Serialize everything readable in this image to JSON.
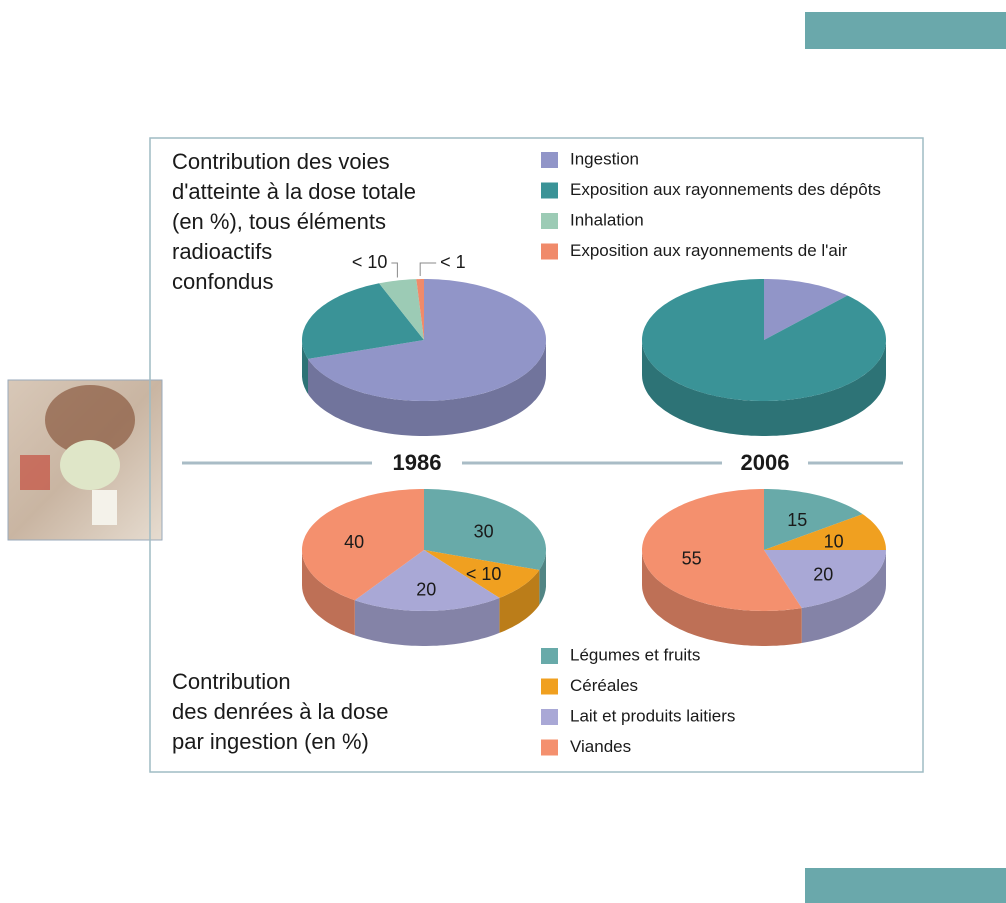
{
  "chart_data": [
    {
      "type": "pie",
      "title": [
        "Contribution des voies",
        "d'atteinte à la dose totale",
        "(en %), tous éléments",
        "radioactifs",
        "confondus"
      ],
      "categories": [
        "Ingestion",
        "Exposition aux rayonnements des dépôts",
        "Inhalation",
        "Exposition aux rayonnements de l'air"
      ],
      "colors": [
        "#9195c8",
        "#3a9397",
        "#9ccbb5",
        "#f08a6a"
      ],
      "series": [
        {
          "name": "1986",
          "values": [
            70,
            24,
            5,
            1
          ],
          "value_labels": [
            null,
            null,
            "< 10",
            "< 1"
          ]
        },
        {
          "name": "2006",
          "values": [
            12,
            88,
            null,
            null
          ]
        }
      ]
    },
    {
      "type": "pie",
      "title": [
        "Contribution",
        "des denrées à la dose",
        "par ingestion (en %)"
      ],
      "categories": [
        "Légumes et fruits",
        "Céréales",
        "Lait et produits laitiers",
        "Viandes"
      ],
      "colors": [
        "#68aaa9",
        "#f0a020",
        "#a9a8d6",
        "#f4906e"
      ],
      "series": [
        {
          "values": [
            30,
            9,
            20,
            40
          ],
          "value_labels": [
            "30",
            "< 10",
            "20",
            "40"
          ]
        },
        {
          "values": [
            15,
            10,
            20,
            55
          ],
          "value_labels": [
            "15",
            "10",
            "20",
            "55"
          ]
        }
      ]
    }
  ]
}
